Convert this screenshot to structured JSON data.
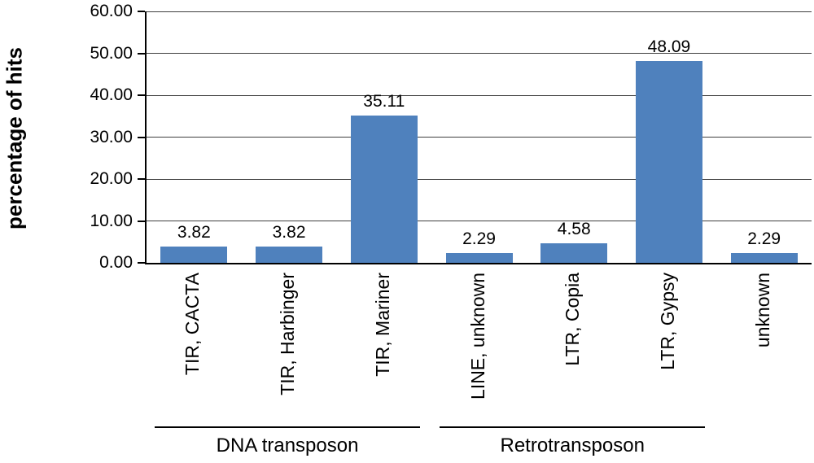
{
  "chart_data": {
    "type": "bar",
    "title": "",
    "xlabel": "",
    "ylabel": "percentage of hits",
    "ylim": [
      0,
      60
    ],
    "ytick_step": 10,
    "ytick_labels": [
      "0.00",
      "10.00",
      "20.00",
      "30.00",
      "40.00",
      "50.00",
      "60.00"
    ],
    "categories": [
      "TIR, CACTA",
      "TIR, Harbinger",
      "TIR, Mariner",
      "LINE, unknown",
      "LTR, Copia",
      "LTR, Gypsy",
      "unknown"
    ],
    "values": [
      3.82,
      3.82,
      35.11,
      2.29,
      4.58,
      48.09,
      2.29
    ],
    "value_labels": [
      "3.82",
      "3.82",
      "35.11",
      "2.29",
      "4.58",
      "48.09",
      "2.29"
    ],
    "bar_color": "#4f81bd",
    "grid": true,
    "legend": "none",
    "groups": [
      {
        "label": "DNA transposon",
        "start": 0,
        "end": 2
      },
      {
        "label": "Retrotransposon",
        "start": 3,
        "end": 5
      }
    ]
  }
}
